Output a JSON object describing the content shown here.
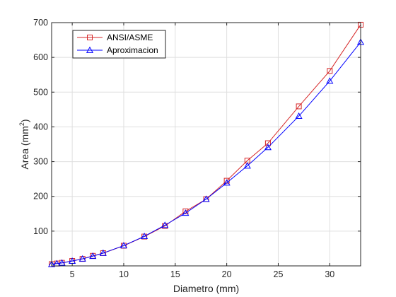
{
  "chart_data": {
    "type": "line",
    "title": "",
    "xlabel": "Diametro (mm)",
    "ylabel": "Area (mm",
    "ylabel_sup": "2",
    "ylabel_close": ")",
    "xlim": [
      3,
      33
    ],
    "ylim": [
      0,
      700
    ],
    "xticks": [
      5,
      10,
      15,
      20,
      25,
      30
    ],
    "yticks": [
      100,
      200,
      300,
      400,
      500,
      600,
      700
    ],
    "grid": true,
    "legend_position": "top-left",
    "series": [
      {
        "name": "ANSI/ASME",
        "color": "#d62728",
        "marker": "square",
        "x": [
          3,
          3.5,
          4,
          5,
          6,
          7,
          8,
          10,
          12,
          14,
          16,
          18,
          20,
          22,
          24,
          27,
          30,
          33
        ],
        "y": [
          5.0,
          6.8,
          8.8,
          14.2,
          20.1,
          28.9,
          36.6,
          58,
          84.3,
          115,
          157,
          192,
          245,
          303,
          353,
          459,
          561,
          694
        ]
      },
      {
        "name": "Aproximacion",
        "color": "#0000ff",
        "marker": "triangle",
        "x": [
          3,
          3.5,
          4,
          5,
          6,
          7,
          8,
          10,
          12,
          14,
          16,
          18,
          20,
          22,
          24,
          27,
          30,
          33
        ],
        "y": [
          4.6,
          6.5,
          8.5,
          13.9,
          20.2,
          28.0,
          36.8,
          58.4,
          85.1,
          117,
          152,
          192,
          239,
          288,
          341,
          431,
          532,
          644
        ]
      }
    ]
  }
}
